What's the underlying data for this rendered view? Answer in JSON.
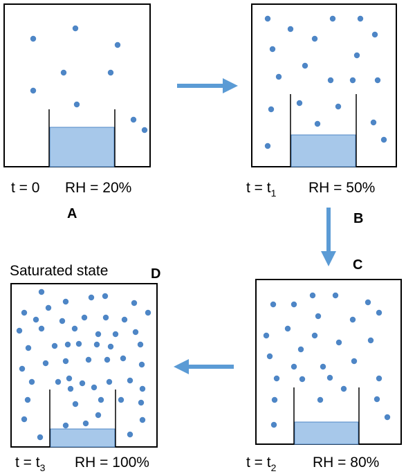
{
  "colors": {
    "molecule": "#4e86c6",
    "water": "#a7c8ea",
    "water_edge": "#4e86c6",
    "arrow": "#5b9bd5",
    "border": "#000000"
  },
  "panels": [
    {
      "id": "A",
      "letter": "A",
      "time_text": "t = 0",
      "time_prefix": "t = 0",
      "time_sub": "",
      "rh_text": "RH = 20%"
    },
    {
      "id": "B",
      "letter": "B",
      "time_text": "t = t1",
      "time_prefix": "t = t",
      "time_sub": "1",
      "rh_text": "RH = 50%"
    },
    {
      "id": "C",
      "letter": "C",
      "time_text": "t = t2",
      "time_prefix": "t = t",
      "time_sub": "2",
      "rh_text": "RH = 80%"
    },
    {
      "id": "D",
      "letter": "D",
      "title": "Saturated state",
      "time_text": "t = t3",
      "time_prefix": "t = t",
      "time_sub": "3",
      "rh_text": "RH = 100%"
    }
  ]
}
